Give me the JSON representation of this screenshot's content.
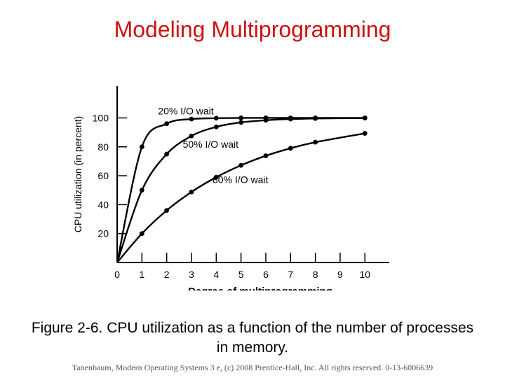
{
  "slide": {
    "title": "Modeling Multiprogramming",
    "caption": "Figure 2-6. CPU utilization as a function of the number of processes in memory.",
    "footer": "Tanenbaum, Modern Operating Systems 3 e, (c) 2008 Prentice-Hall, Inc. All rights reserved. 0-13-6006639"
  },
  "chart_data": {
    "type": "line",
    "title": "",
    "xlabel": "Degree of multiprogramming",
    "ylabel": "CPU utilization (in percent)",
    "x": [
      0,
      1,
      2,
      3,
      4,
      5,
      6,
      7,
      8,
      9,
      10
    ],
    "x_ticks": [
      "0",
      "1",
      "2",
      "3",
      "4",
      "5",
      "6",
      "7",
      "8",
      "9",
      "10"
    ],
    "y_ticks": [
      "20",
      "40",
      "60",
      "80",
      "100"
    ],
    "xlim": [
      0,
      10.7
    ],
    "ylim": [
      0,
      122
    ],
    "grid": false,
    "series": [
      {
        "name": "20% I/O wait",
        "x": [
          0,
          1,
          2,
          3,
          4,
          5,
          6,
          7,
          8,
          10
        ],
        "values": [
          0,
          80,
          96,
          99.2,
          99.8,
          100,
          100,
          100,
          100,
          100
        ]
      },
      {
        "name": "50% I/O wait",
        "x": [
          0,
          1,
          2,
          3,
          4,
          5,
          6,
          7,
          8,
          10
        ],
        "values": [
          0,
          50,
          75,
          87.5,
          93.8,
          96.9,
          98.4,
          99.2,
          99.6,
          99.9
        ]
      },
      {
        "name": "80% I/O wait",
        "x": [
          0,
          1,
          2,
          3,
          4,
          5,
          6,
          7,
          8,
          10
        ],
        "values": [
          0,
          20,
          36,
          48.8,
          59,
          67.2,
          73.8,
          79,
          83.2,
          89.3
        ]
      }
    ]
  }
}
